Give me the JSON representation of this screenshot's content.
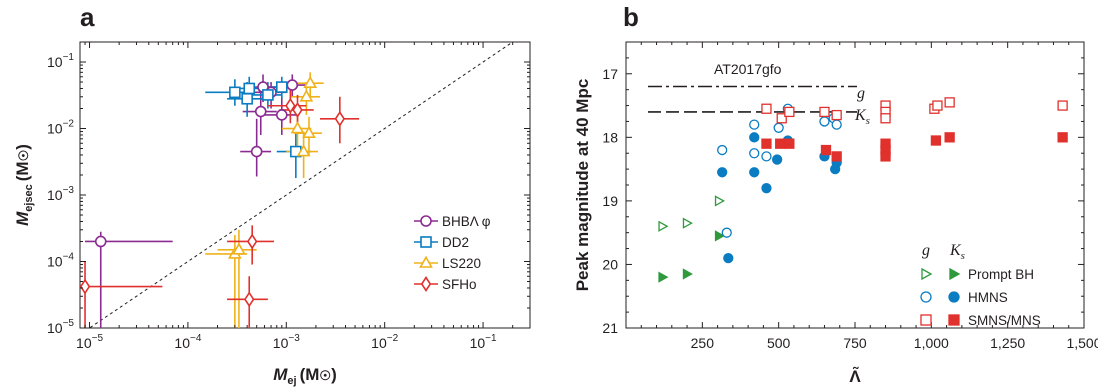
{
  "chart_data": [
    {
      "panel": "a",
      "type": "scatter",
      "xlabel_main": "M",
      "xlabel_sub": "ej",
      "xlabel_unit": "(M",
      "xlabel_unit_sym": "☉",
      "xlabel_unit_close": ")",
      "ylabel_main": "M",
      "ylabel_sub": "ejsec",
      "ylabel_unit": "(M",
      "ylabel_unit_sym": "☉",
      "ylabel_unit_close": ")",
      "xscale": "log",
      "yscale": "log",
      "xlim": [
        8e-06,
        0.3
      ],
      "ylim": [
        1e-05,
        0.2
      ],
      "xticks": [
        {
          "value": 1e-05,
          "base": "10",
          "exp": "−5"
        },
        {
          "value": 0.0001,
          "base": "10",
          "exp": "−4"
        },
        {
          "value": 0.001,
          "base": "10",
          "exp": "−3"
        },
        {
          "value": 0.01,
          "base": "10",
          "exp": "−2"
        },
        {
          "value": 0.1,
          "base": "10",
          "exp": "−1"
        }
      ],
      "yticks": [
        {
          "value": 1e-05,
          "base": "10",
          "exp": "−5"
        },
        {
          "value": 0.0001,
          "base": "10",
          "exp": "−4"
        },
        {
          "value": 0.001,
          "base": "10",
          "exp": "−3"
        },
        {
          "value": 0.01,
          "base": "10",
          "exp": "−2"
        },
        {
          "value": 0.1,
          "base": "10",
          "exp": "−1"
        }
      ],
      "diagonal": "y = x (dashed)",
      "legend_position": "right",
      "series": [
        {
          "name": "BHBΛ φ",
          "marker": "circle",
          "color": "#8b2b92",
          "points": [
            {
              "x": 1.3e-05,
              "y": 0.0002,
              "xlo": 9e-06,
              "xhi": 7e-05,
              "ylo": 1e-05,
              "yhi": 0.00028
            },
            {
              "x": 0.0005,
              "y": 0.0045,
              "xlo": 0.00034,
              "xhi": 0.0007,
              "ylo": 0.0019,
              "yhi": 0.014
            },
            {
              "x": 0.00055,
              "y": 0.018,
              "xlo": 0.00036,
              "xhi": 0.0008,
              "ylo": 0.008,
              "yhi": 0.035
            },
            {
              "x": 0.00058,
              "y": 0.042,
              "xlo": 0.0004,
              "xhi": 0.0008,
              "ylo": 0.025,
              "yhi": 0.065
            },
            {
              "x": 0.0007,
              "y": 0.035,
              "xlo": 0.00045,
              "xhi": 0.001,
              "ylo": 0.02,
              "yhi": 0.05
            },
            {
              "x": 0.0009,
              "y": 0.016,
              "xlo": 0.0006,
              "xhi": 0.0013,
              "ylo": 0.008,
              "yhi": 0.03
            },
            {
              "x": 0.00115,
              "y": 0.045,
              "xlo": 0.0008,
              "xhi": 0.0017,
              "ylo": 0.03,
              "yhi": 0.065
            }
          ]
        },
        {
          "name": "DD2",
          "marker": "square",
          "color": "#0a7cc1",
          "points": [
            {
              "x": 0.0003,
              "y": 0.035,
              "xlo": 0.00015,
              "xhi": 0.00045,
              "ylo": 0.022,
              "yhi": 0.055
            },
            {
              "x": 0.0004,
              "y": 0.028,
              "xlo": 0.00025,
              "xhi": 0.0006,
              "ylo": 0.015,
              "yhi": 0.05
            },
            {
              "x": 0.00042,
              "y": 0.04,
              "xlo": 0.00028,
              "xhi": 0.0006,
              "ylo": 0.025,
              "yhi": 0.06
            },
            {
              "x": 0.00065,
              "y": 0.032,
              "xlo": 0.00045,
              "xhi": 0.0009,
              "ylo": 0.02,
              "yhi": 0.05
            },
            {
              "x": 0.0009,
              "y": 0.042,
              "xlo": 0.0006,
              "xhi": 0.0013,
              "ylo": 0.028,
              "yhi": 0.06
            },
            {
              "x": 0.00125,
              "y": 0.0045,
              "xlo": 0.0008,
              "xhi": 0.0018,
              "ylo": 0.0018,
              "yhi": 0.01
            }
          ]
        },
        {
          "name": "LS220",
          "marker": "triangle",
          "color": "#f0b21a",
          "points": [
            {
              "x": 0.0003,
              "y": 0.00013,
              "xlo": 0.00015,
              "xhi": 0.0004,
              "ylo": 1e-05,
              "yhi": 0.00025
            },
            {
              "x": 0.00033,
              "y": 0.00015,
              "xlo": 0.0002,
              "xhi": 0.0005,
              "ylo": 1e-05,
              "yhi": 0.0003
            },
            {
              "x": 0.0013,
              "y": 0.01,
              "xlo": 0.0009,
              "xhi": 0.0018,
              "ylo": 0.005,
              "yhi": 0.018
            },
            {
              "x": 0.0015,
              "y": 0.0045,
              "xlo": 0.001,
              "xhi": 0.0021,
              "ylo": 0.0018,
              "yhi": 0.009
            },
            {
              "x": 0.0016,
              "y": 0.03,
              "xlo": 0.0011,
              "xhi": 0.0022,
              "ylo": 0.016,
              "yhi": 0.05
            },
            {
              "x": 0.00175,
              "y": 0.048,
              "xlo": 0.0012,
              "xhi": 0.0024,
              "ylo": 0.03,
              "yhi": 0.07
            },
            {
              "x": 0.0017,
              "y": 0.0085,
              "xlo": 0.0012,
              "xhi": 0.0023,
              "ylo": 0.004,
              "yhi": 0.015
            }
          ]
        },
        {
          "name": "SFHo",
          "marker": "diamond",
          "color": "#e0312d",
          "points": [
            {
              "x": 9e-06,
              "y": 4.2e-05,
              "xlo": 8e-06,
              "xhi": 5.5e-05,
              "ylo": 1e-05,
              "yhi": 0.0001
            },
            {
              "x": 0.00042,
              "y": 2.7e-05,
              "xlo": 0.00025,
              "xhi": 0.00065,
              "ylo": 1e-05,
              "yhi": 6e-05
            },
            {
              "x": 0.00045,
              "y": 0.0002,
              "xlo": 0.00025,
              "xhi": 0.00075,
              "ylo": 9e-05,
              "yhi": 0.00035
            },
            {
              "x": 0.0011,
              "y": 0.022,
              "xlo": 0.00065,
              "xhi": 0.0016,
              "ylo": 0.012,
              "yhi": 0.04
            },
            {
              "x": 0.0013,
              "y": 0.019,
              "xlo": 0.00085,
              "xhi": 0.0019,
              "ylo": 0.01,
              "yhi": 0.032
            },
            {
              "x": 0.0035,
              "y": 0.014,
              "xlo": 0.0022,
              "xhi": 0.0055,
              "ylo": 0.006,
              "yhi": 0.03
            }
          ]
        }
      ]
    },
    {
      "panel": "b",
      "type": "scatter",
      "xlabel": "Λ̃",
      "ylabel": "Peak magnitude at 40 Mpc",
      "xlim": [
        0,
        1500
      ],
      "ylim": [
        21,
        16.5
      ],
      "y_inverted": true,
      "xticks": [
        {
          "value": 250,
          "label": "250"
        },
        {
          "value": 500,
          "label": "500"
        },
        {
          "value": 750,
          "label": "750"
        },
        {
          "value": 1000,
          "label": "1,000"
        },
        {
          "value": 1250,
          "label": "1,250"
        },
        {
          "value": 1500,
          "label": "1,500"
        }
      ],
      "yticks": [
        {
          "value": 17,
          "label": "17"
        },
        {
          "value": 18,
          "label": "18"
        },
        {
          "value": 19,
          "label": "19"
        },
        {
          "value": 20,
          "label": "20"
        },
        {
          "value": 21,
          "label": "21"
        }
      ],
      "reference": {
        "label": "AT2017gfo",
        "lines": [
          {
            "band": "g",
            "y": 17.2,
            "style": "dash-dot"
          },
          {
            "band": "K",
            "band_sub": "s",
            "y": 17.6,
            "style": "dashed"
          }
        ],
        "x_range": [
          0,
          750
        ]
      },
      "legend_position": "bottom-right",
      "legend_headers": {
        "open": "g",
        "filled": "K",
        "filled_sub": "s"
      },
      "series": [
        {
          "name": "Prompt BH",
          "marker": "triangle-right",
          "color": "#2e9a3c",
          "g": [
            {
              "x": 120,
              "y": 19.4
            },
            {
              "x": 200,
              "y": 19.35
            },
            {
              "x": 305,
              "y": 19.0
            }
          ],
          "Ks": [
            {
              "x": 120,
              "y": 20.2
            },
            {
              "x": 200,
              "y": 20.15
            },
            {
              "x": 305,
              "y": 19.55
            }
          ]
        },
        {
          "name": "HMNS",
          "marker": "circle",
          "color": "#0a7cc1",
          "g": [
            {
              "x": 315,
              "y": 18.2
            },
            {
              "x": 330,
              "y": 19.5
            },
            {
              "x": 420,
              "y": 17.8
            },
            {
              "x": 420,
              "y": 18.25
            },
            {
              "x": 460,
              "y": 18.3
            },
            {
              "x": 500,
              "y": 17.85
            },
            {
              "x": 530,
              "y": 17.55
            },
            {
              "x": 650,
              "y": 17.75
            },
            {
              "x": 680,
              "y": 17.7
            },
            {
              "x": 690,
              "y": 17.8
            }
          ],
          "Ks": [
            {
              "x": 315,
              "y": 18.55
            },
            {
              "x": 335,
              "y": 19.9
            },
            {
              "x": 420,
              "y": 18.0
            },
            {
              "x": 420,
              "y": 18.55
            },
            {
              "x": 460,
              "y": 18.8
            },
            {
              "x": 495,
              "y": 18.35
            },
            {
              "x": 530,
              "y": 18.05
            },
            {
              "x": 650,
              "y": 18.3
            },
            {
              "x": 685,
              "y": 18.5
            },
            {
              "x": 690,
              "y": 18.4
            }
          ]
        },
        {
          "name": "SMNS/MNS",
          "marker": "square",
          "color": "#e0312d",
          "g": [
            {
              "x": 460,
              "y": 17.55
            },
            {
              "x": 510,
              "y": 17.7
            },
            {
              "x": 535,
              "y": 17.6
            },
            {
              "x": 650,
              "y": 17.6
            },
            {
              "x": 690,
              "y": 17.65
            },
            {
              "x": 850,
              "y": 17.5
            },
            {
              "x": 850,
              "y": 17.6
            },
            {
              "x": 850,
              "y": 17.7
            },
            {
              "x": 1010,
              "y": 17.55
            },
            {
              "x": 1020,
              "y": 17.5
            },
            {
              "x": 1060,
              "y": 17.45
            },
            {
              "x": 1430,
              "y": 17.5
            }
          ],
          "Ks": [
            {
              "x": 460,
              "y": 18.1
            },
            {
              "x": 505,
              "y": 18.1
            },
            {
              "x": 535,
              "y": 18.1
            },
            {
              "x": 655,
              "y": 18.2
            },
            {
              "x": 690,
              "y": 18.3
            },
            {
              "x": 850,
              "y": 18.1
            },
            {
              "x": 850,
              "y": 18.2
            },
            {
              "x": 850,
              "y": 18.3
            },
            {
              "x": 1015,
              "y": 18.05
            },
            {
              "x": 1060,
              "y": 18.0
            },
            {
              "x": 1430,
              "y": 18.0
            }
          ]
        }
      ]
    }
  ]
}
